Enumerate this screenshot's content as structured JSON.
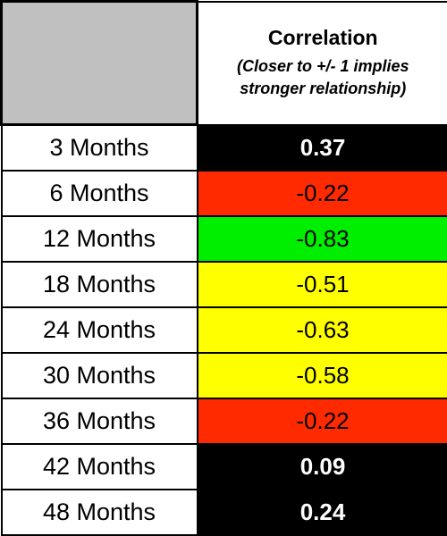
{
  "table": {
    "header": {
      "title": "Correlation",
      "note_line1": "(Closer to +/- 1 implies",
      "note_line2": "stronger relationship)"
    },
    "rows": [
      {
        "label": "3 Months",
        "value": "0.37",
        "bg": "#000000",
        "fg": "#ffffff",
        "bold": true
      },
      {
        "label": "6 Months",
        "value": "-0.22",
        "bg": "#ff2a00",
        "fg": "#000000",
        "bold": false
      },
      {
        "label": "12 Months",
        "value": "-0.83",
        "bg": "#00ee00",
        "fg": "#000000",
        "bold": false
      },
      {
        "label": "18 Months",
        "value": "-0.51",
        "bg": "#ffff00",
        "fg": "#000000",
        "bold": false
      },
      {
        "label": "24 Months",
        "value": "-0.63",
        "bg": "#ffff00",
        "fg": "#000000",
        "bold": false
      },
      {
        "label": "30 Months",
        "value": "-0.58",
        "bg": "#ffff00",
        "fg": "#000000",
        "bold": false
      },
      {
        "label": "36 Months",
        "value": "-0.22",
        "bg": "#ff2a00",
        "fg": "#000000",
        "bold": false
      },
      {
        "label": "42 Months",
        "value": "0.09",
        "bg": "#000000",
        "fg": "#ffffff",
        "bold": true
      },
      {
        "label": "48 Months",
        "value": "0.24",
        "bg": "#000000",
        "fg": "#ffffff",
        "bold": true
      }
    ]
  }
}
